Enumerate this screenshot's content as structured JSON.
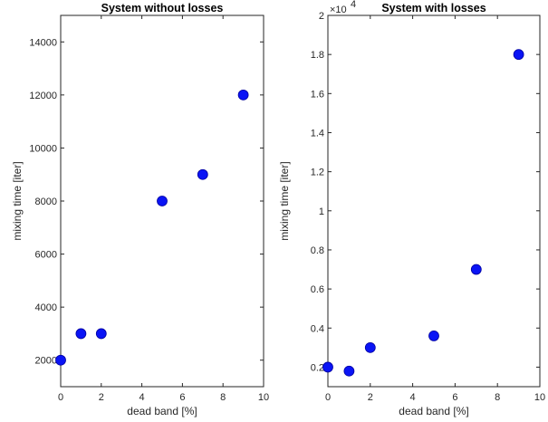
{
  "chart_data": [
    {
      "type": "scatter",
      "title": "System without losses",
      "xlabel": "dead band [%]",
      "ylabel": "mixing time [iter]",
      "xlim": [
        0,
        10
      ],
      "ylim": [
        1000,
        15000
      ],
      "xticks": [
        0,
        2,
        4,
        6,
        8,
        10
      ],
      "yticks": [
        2000,
        4000,
        6000,
        8000,
        10000,
        12000,
        14000
      ],
      "grid": false,
      "marker_color": "#0a14f5",
      "x": [
        0,
        1,
        2,
        5,
        7,
        9
      ],
      "y": [
        2000,
        3000,
        3000,
        8000,
        9000,
        12000
      ]
    },
    {
      "type": "scatter",
      "title": "System with losses",
      "xlabel": "dead band [%]",
      "ylabel": "mixing time [iter]",
      "xlim": [
        0,
        10
      ],
      "ylim": [
        0.1,
        2
      ],
      "xticks": [
        0,
        2,
        4,
        6,
        8,
        10
      ],
      "yticks": [
        0.2,
        0.4,
        0.6,
        0.8,
        1,
        1.2,
        1.4,
        1.6,
        1.8,
        2
      ],
      "ytick_labels": [
        "0.2",
        "0.4",
        "0.6",
        "0.8",
        "1",
        "1.2",
        "1.4",
        "1.6",
        "1.8",
        "2"
      ],
      "y_multiplier": "×10",
      "y_multiplier_exponent": "4",
      "grid": false,
      "marker_color": "#0a14f5",
      "x": [
        0,
        1,
        2,
        5,
        7,
        9
      ],
      "y": [
        0.2,
        0.18,
        0.3,
        0.36,
        0.7,
        1.8
      ]
    }
  ]
}
